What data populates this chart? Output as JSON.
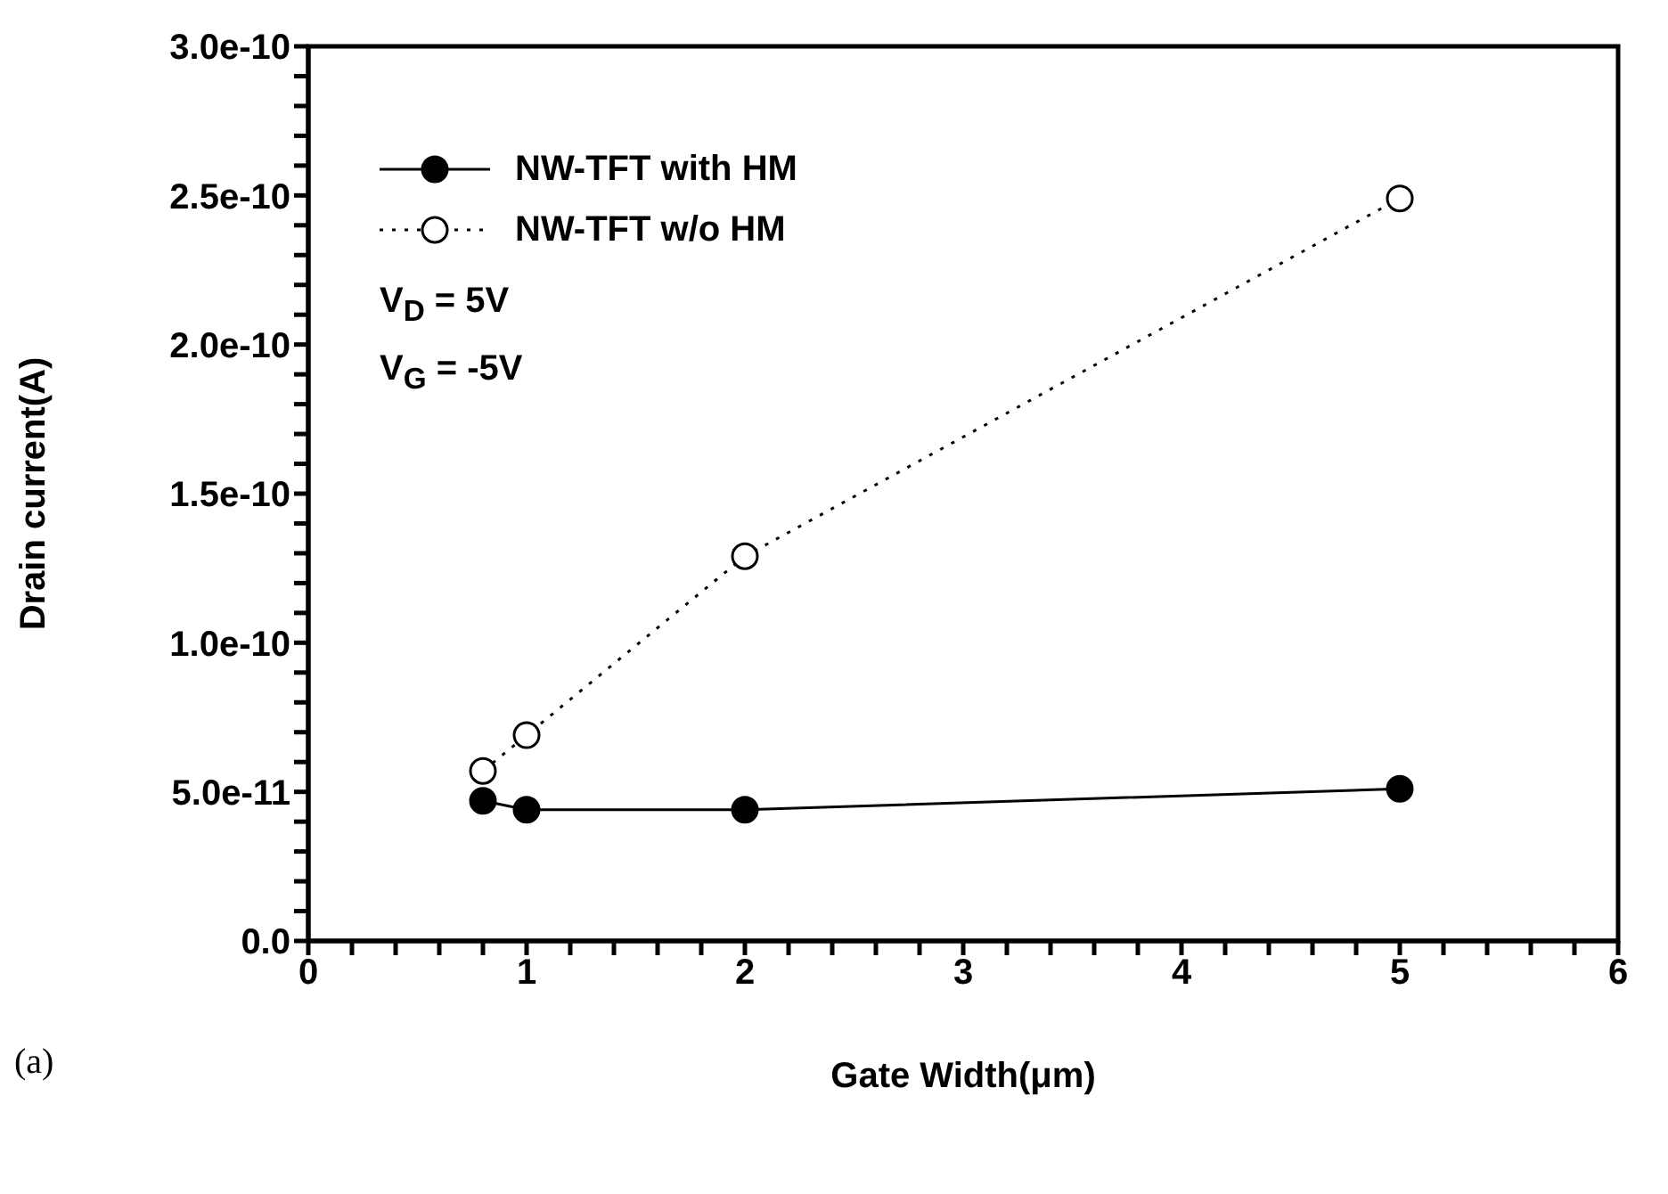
{
  "chart_data": {
    "type": "line",
    "xlabel": "Gate Width(μm)",
    "ylabel": "Drain current(A)",
    "x": [
      0.8,
      1,
      2,
      5
    ],
    "series": [
      {
        "name": "NW-TFT with HM",
        "color": "#000000",
        "values": [
          4.7e-11,
          4.4e-11,
          4.4e-11,
          5.1e-11
        ],
        "line_style": "solid",
        "marker": "circle"
      },
      {
        "name": "NW-TFT w/o HM",
        "color": "#000000",
        "values": [
          5.7e-11,
          6.9e-11,
          1.29e-10,
          2.49e-10
        ],
        "line_style": "dotted",
        "marker": "circle"
      }
    ],
    "xlim": [
      0,
      6
    ],
    "xticks": [
      0,
      {
        "value": 0.2,
        "label": null
      },
      {
        "value": 0.4,
        "label": null
      },
      {
        "value": 0.6,
        "label": null
      },
      {
        "value": 0.8,
        "label": null
      },
      1,
      {
        "value": 1.2,
        "label": null
      },
      {
        "value": 1.4,
        "label": null
      },
      {
        "value": 1.6,
        "label": null
      },
      {
        "value": 1.8,
        "label": null
      },
      2,
      {
        "value": 2.2,
        "label": null
      },
      {
        "value": 2.4,
        "label": null
      },
      {
        "value": 2.6,
        "label": null
      },
      {
        "value": 2.8,
        "label": null
      },
      3,
      {
        "value": 3.2,
        "label": null
      },
      {
        "value": 3.4,
        "label": null
      },
      {
        "value": 3.6,
        "label": null
      },
      {
        "value": 3.8,
        "label": null
      },
      4,
      {
        "value": 4.2,
        "label": null
      },
      {
        "value": 4.4,
        "label": null
      },
      {
        "value": 4.6,
        "label": null
      },
      {
        "value": 4.8,
        "label": null
      },
      5,
      {
        "value": 5.2,
        "label": null
      },
      {
        "value": 5.4,
        "label": null
      },
      {
        "value": 5.6,
        "label": null
      },
      {
        "value": 5.8,
        "label": null
      },
      6
    ],
    "ylim": [
      0,
      3e-10
    ],
    "yticks": [
      {
        "value": 0,
        "label": "0.0"
      },
      {
        "value": 1e-11,
        "label": null
      },
      {
        "value": 2e-11,
        "label": null
      },
      {
        "value": 3e-11,
        "label": null
      },
      {
        "value": 4e-11,
        "label": null
      },
      {
        "value": 5e-11,
        "label": "5.0e-11"
      },
      {
        "value": 6e-11,
        "label": null
      },
      {
        "value": 7e-11,
        "label": null
      },
      {
        "value": 8e-11,
        "label": null
      },
      {
        "value": 9e-11,
        "label": null
      },
      {
        "value": 1e-10,
        "label": "1.0e-10"
      },
      {
        "value": 1.1e-10,
        "label": null
      },
      {
        "value": 1.2e-10,
        "label": null
      },
      {
        "value": 1.3e-10,
        "label": null
      },
      {
        "value": 1.4e-10,
        "label": null
      },
      {
        "value": 1.5e-10,
        "label": "1.5e-10"
      },
      {
        "value": 1.6e-10,
        "label": null
      },
      {
        "value": 1.7e-10,
        "label": null
      },
      {
        "value": 1.8e-10,
        "label": null
      },
      {
        "value": 1.9e-10,
        "label": null
      },
      {
        "value": 2e-10,
        "label": "2.0e-10"
      },
      {
        "value": 2.1e-10,
        "label": null
      },
      {
        "value": 2.2e-10,
        "label": null
      },
      {
        "value": 2.3e-10,
        "label": null
      },
      {
        "value": 2.4e-10,
        "label": null
      },
      {
        "value": 2.5e-10,
        "label": "2.5e-10"
      },
      {
        "value": 2.6e-10,
        "label": null
      },
      {
        "value": 2.7e-10,
        "label": null
      },
      {
        "value": 2.8e-10,
        "label": null
      },
      {
        "value": 2.9e-10,
        "label": null
      },
      {
        "value": 3e-10,
        "label": "3.0e-10"
      }
    ],
    "legend": "top left",
    "grid": false,
    "annotations": [
      "V$_{D}$ = 5V",
      "V$_{G}$ = -5V",
      "(a)"
    ]
  }
}
